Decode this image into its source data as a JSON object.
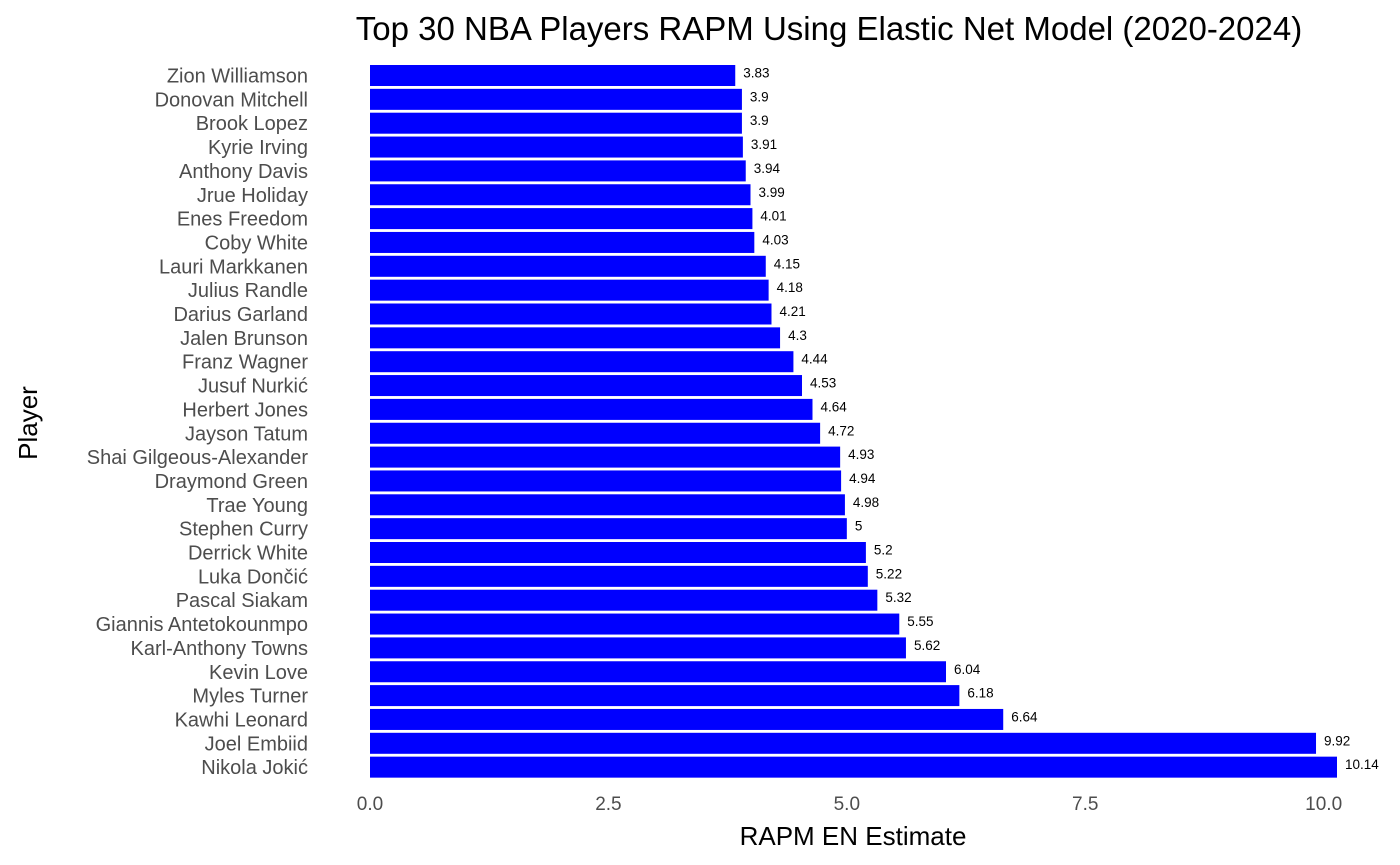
{
  "chart_data": {
    "type": "bar",
    "orientation": "horizontal",
    "title": "Top 30 NBA Players RAPM Using Elastic Net Model (2020-2024)",
    "xlabel": "RAPM EN Estimate",
    "ylabel": "Player",
    "xlim": [
      0,
      10.14
    ],
    "xticks": [
      0,
      2.5,
      5,
      7.5,
      10
    ],
    "xtick_labels": [
      "0.0",
      "2.5",
      "5.0",
      "7.5",
      "10.0"
    ],
    "grid": false,
    "bar_color": "#0000ff",
    "categories": [
      "Zion Williamson",
      "Donovan Mitchell",
      "Brook Lopez",
      "Kyrie Irving",
      "Anthony Davis",
      "Jrue Holiday",
      "Enes Freedom",
      "Coby White",
      "Lauri Markkanen",
      "Julius Randle",
      "Darius Garland",
      "Jalen Brunson",
      "Franz Wagner",
      "Jusuf Nurkić",
      "Herbert Jones",
      "Jayson Tatum",
      "Shai Gilgeous-Alexander",
      "Draymond Green",
      "Trae Young",
      "Stephen Curry",
      "Derrick White",
      "Luka Dončić",
      "Pascal Siakam",
      "Giannis Antetokounmpo",
      "Karl-Anthony Towns",
      "Kevin Love",
      "Myles Turner",
      "Kawhi Leonard",
      "Joel Embiid",
      "Nikola Jokić"
    ],
    "values": [
      3.83,
      3.9,
      3.9,
      3.91,
      3.94,
      3.99,
      4.01,
      4.03,
      4.15,
      4.18,
      4.21,
      4.3,
      4.44,
      4.53,
      4.64,
      4.72,
      4.93,
      4.94,
      4.98,
      5,
      5.2,
      5.22,
      5.32,
      5.55,
      5.62,
      6.04,
      6.18,
      6.64,
      9.92,
      10.14
    ],
    "value_labels": [
      "3.83",
      "3.9",
      "3.9",
      "3.91",
      "3.94",
      "3.99",
      "4.01",
      "4.03",
      "4.15",
      "4.18",
      "4.21",
      "4.3",
      "4.44",
      "4.53",
      "4.64",
      "4.72",
      "4.93",
      "4.94",
      "4.98",
      "5",
      "5.2",
      "5.22",
      "5.32",
      "5.55",
      "5.62",
      "6.04",
      "6.18",
      "6.64",
      "9.92",
      "10.14"
    ]
  }
}
